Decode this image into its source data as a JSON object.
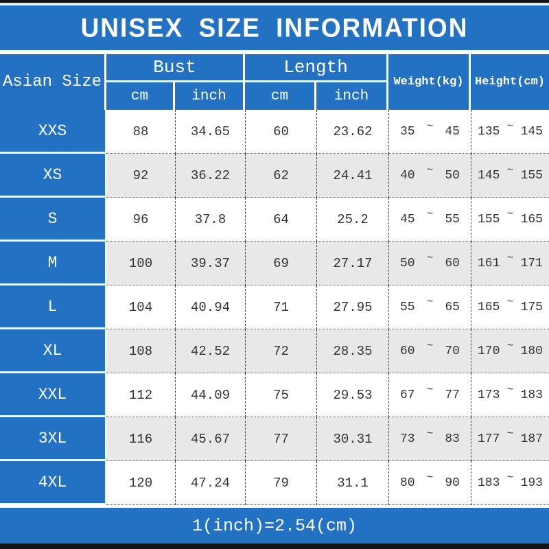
{
  "title": "UNISEX SIZE INFORMATION",
  "footer_note": "1(inch)=2.54(cm)",
  "tilde": "~",
  "header": {
    "corner": "Asian Size",
    "bust_label": "Bust",
    "length_label": "Length",
    "cm": "cm",
    "inch": "inch",
    "weight": "Weight(kg)",
    "height": "Height(cm)"
  },
  "rows": [
    {
      "size": "XXS",
      "bust_cm": "88",
      "bust_inch": "34.65",
      "len_cm": "60",
      "len_inch": "23.62",
      "w_min": "35",
      "w_max": "45",
      "h_min": "135",
      "h_max": "145"
    },
    {
      "size": "XS",
      "bust_cm": "92",
      "bust_inch": "36.22",
      "len_cm": "62",
      "len_inch": "24.41",
      "w_min": "40",
      "w_max": "50",
      "h_min": "145",
      "h_max": "155"
    },
    {
      "size": "S",
      "bust_cm": "96",
      "bust_inch": "37.8",
      "len_cm": "64",
      "len_inch": "25.2",
      "w_min": "45",
      "w_max": "55",
      "h_min": "155",
      "h_max": "165"
    },
    {
      "size": "M",
      "bust_cm": "100",
      "bust_inch": "39.37",
      "len_cm": "69",
      "len_inch": "27.17",
      "w_min": "50",
      "w_max": "60",
      "h_min": "161",
      "h_max": "171"
    },
    {
      "size": "L",
      "bust_cm": "104",
      "bust_inch": "40.94",
      "len_cm": "71",
      "len_inch": "27.95",
      "w_min": "55",
      "w_max": "65",
      "h_min": "165",
      "h_max": "175"
    },
    {
      "size": "XL",
      "bust_cm": "108",
      "bust_inch": "42.52",
      "len_cm": "72",
      "len_inch": "28.35",
      "w_min": "60",
      "w_max": "70",
      "h_min": "170",
      "h_max": "180"
    },
    {
      "size": "XXL",
      "bust_cm": "112",
      "bust_inch": "44.09",
      "len_cm": "75",
      "len_inch": "29.53",
      "w_min": "67",
      "w_max": "77",
      "h_min": "173",
      "h_max": "183"
    },
    {
      "size": "3XL",
      "bust_cm": "116",
      "bust_inch": "45.67",
      "len_cm": "77",
      "len_inch": "30.31",
      "w_min": "73",
      "w_max": "83",
      "h_min": "177",
      "h_max": "187"
    },
    {
      "size": "4XL",
      "bust_cm": "120",
      "bust_inch": "47.24",
      "len_cm": "79",
      "len_inch": "31.1",
      "w_min": "80",
      "w_max": "90",
      "h_min": "183",
      "h_max": "193"
    }
  ],
  "colors": {
    "blue": "#2271c3",
    "alt_row_bg": "#e8e8e8",
    "data_text": "#333333",
    "bar_black": "#141414",
    "header_text": "#ffffff"
  },
  "chart_data": {
    "type": "table",
    "title": "UNISEX SIZE INFORMATION",
    "columns": [
      "Asian Size",
      "Bust cm",
      "Bust inch",
      "Length cm",
      "Length inch",
      "Weight(kg)",
      "Height(cm)"
    ],
    "rows": [
      [
        "XXS",
        88,
        34.65,
        60,
        23.62,
        "35~45",
        "135~145"
      ],
      [
        "XS",
        92,
        36.22,
        62,
        24.41,
        "40~50",
        "145~155"
      ],
      [
        "S",
        96,
        37.8,
        64,
        25.2,
        "45~55",
        "155~165"
      ],
      [
        "M",
        100,
        39.37,
        69,
        27.17,
        "50~60",
        "161~171"
      ],
      [
        "L",
        104,
        40.94,
        71,
        27.95,
        "55~65",
        "165~175"
      ],
      [
        "XL",
        108,
        42.52,
        72,
        28.35,
        "60~70",
        "170~180"
      ],
      [
        "XXL",
        112,
        44.09,
        75,
        29.53,
        "67~77",
        "173~183"
      ],
      [
        "3XL",
        116,
        45.67,
        77,
        30.31,
        "73~83",
        "177~187"
      ],
      [
        "4XL",
        120,
        47.24,
        79,
        31.1,
        "80~90",
        "183~193"
      ]
    ],
    "note": "1(inch)=2.54(cm)"
  }
}
